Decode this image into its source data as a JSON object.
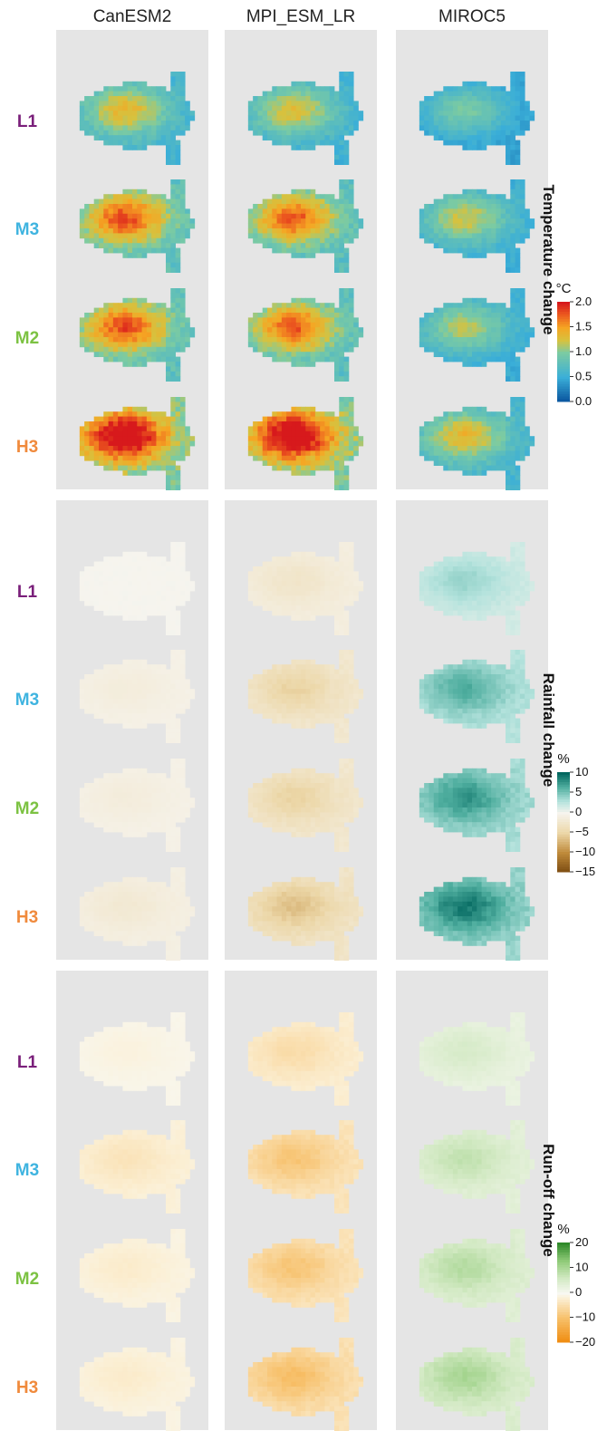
{
  "chart_data": {
    "type": "heatmap",
    "models": [
      "CanESM2",
      "MPI_ESM_LR",
      "MIROC5"
    ],
    "scenarios": [
      {
        "name": "L1",
        "color": "#7a1f7a"
      },
      {
        "name": "M3",
        "color": "#3fb4e0"
      },
      {
        "name": "M2",
        "color": "#7cc242"
      },
      {
        "name": "H3",
        "color": "#f08a3c"
      }
    ],
    "panels": [
      {
        "title": "Temperature change",
        "unit": "°C",
        "colormap": "temperature",
        "scale_min": 0.0,
        "scale_max": 2.0,
        "ticks": [
          {
            "value": 2.0,
            "label": "2.0"
          },
          {
            "value": 1.5,
            "label": "1.5"
          },
          {
            "value": 1.0,
            "label": "1.0"
          },
          {
            "value": 0.5,
            "label": "0.5"
          },
          {
            "value": 0.0,
            "label": "0.0"
          }
        ],
        "approx_mean_change": [
          [
            1.05,
            1.4,
            1.4,
            1.75
          ],
          [
            1.0,
            1.35,
            1.35,
            1.75
          ],
          [
            0.75,
            0.95,
            0.9,
            1.05
          ]
        ]
      },
      {
        "title": "Rainfall change",
        "unit": "%",
        "colormap": "rainfall",
        "scale_min": -15,
        "scale_max": 10,
        "ticks": [
          {
            "value": 10,
            "label": "10"
          },
          {
            "value": 5,
            "label": "5"
          },
          {
            "value": 0,
            "label": "0"
          },
          {
            "value": -5,
            "label": "−5"
          },
          {
            "value": -10,
            "label": "−10"
          },
          {
            "value": -15,
            "label": "−15"
          }
        ],
        "approx_mean_change": [
          [
            0,
            -1,
            -1,
            -1.5
          ],
          [
            -2,
            -4,
            -4,
            -5
          ],
          [
            3,
            5,
            6,
            7
          ]
        ]
      },
      {
        "title": "Run-off change",
        "unit": "%",
        "colormap": "runoff",
        "scale_min": -20,
        "scale_max": 20,
        "ticks": [
          {
            "value": 20,
            "label": "20"
          },
          {
            "value": 10,
            "label": "10"
          },
          {
            "value": 0,
            "label": "0"
          },
          {
            "value": -10,
            "label": "−10"
          },
          {
            "value": -20,
            "label": "−20"
          }
        ],
        "approx_mean_change": [
          [
            -1,
            -3,
            -2,
            -2
          ],
          [
            -4,
            -7,
            -7,
            -8
          ],
          [
            4,
            6,
            7,
            8
          ]
        ]
      }
    ]
  }
}
